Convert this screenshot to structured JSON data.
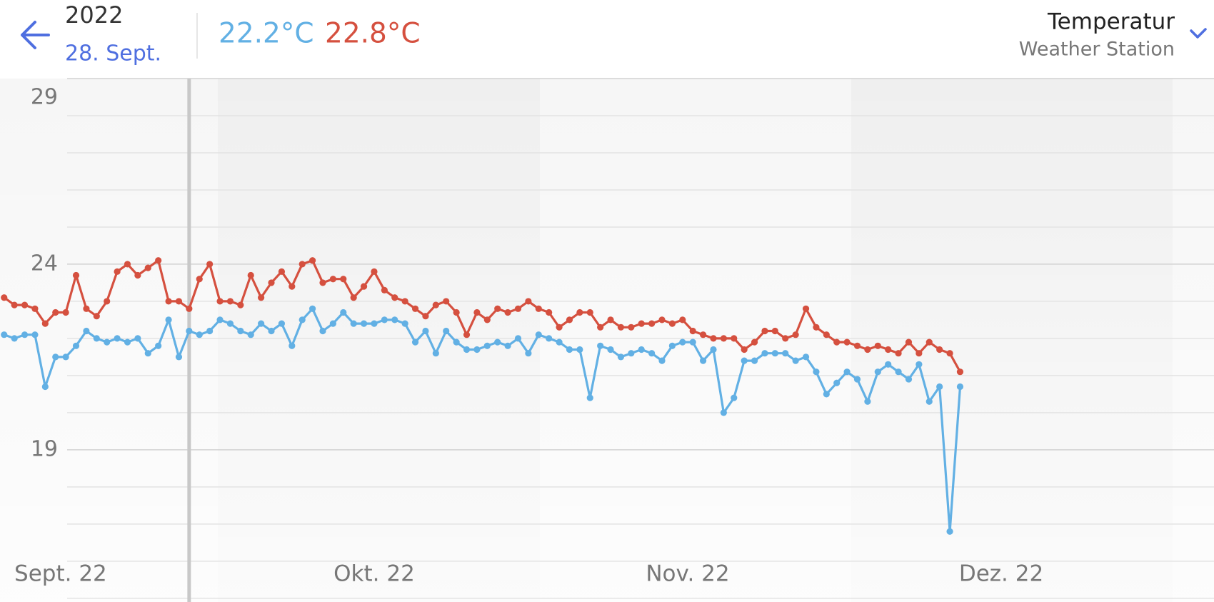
{
  "header": {
    "year": "2022",
    "date": "28. Sept.",
    "readouts": [
      "22.2°C",
      "22.8°C"
    ],
    "title": "Temperatur",
    "subtitle": "Weather Station"
  },
  "chart_data": {
    "type": "line",
    "x": [
      10,
      11,
      12,
      13,
      14,
      15,
      16,
      17,
      18,
      19,
      20,
      21,
      22,
      23,
      24,
      25,
      26,
      27,
      28,
      29,
      30,
      31,
      32,
      33,
      34,
      35,
      36,
      37,
      38,
      39,
      40,
      41,
      42,
      43,
      44,
      45,
      46,
      47,
      48,
      49,
      50,
      51,
      52,
      53,
      54,
      55,
      56,
      57,
      58,
      59,
      60,
      61,
      62,
      63,
      64,
      65,
      66,
      67,
      68,
      69,
      70,
      71,
      72,
      73,
      74,
      75,
      76,
      77,
      78,
      79,
      80,
      81,
      82,
      83,
      84,
      85,
      86,
      87,
      88,
      89,
      90,
      91,
      92,
      93,
      94,
      95,
      96,
      97,
      98,
      99,
      100,
      101,
      102,
      103
    ],
    "series": [
      {
        "color": "#62b0e4",
        "values": [
          22.1,
          22.0,
          22.1,
          22.1,
          20.7,
          21.5,
          21.5,
          21.8,
          22.2,
          22.0,
          21.9,
          22.0,
          21.9,
          22.0,
          21.6,
          21.8,
          22.5,
          21.5,
          22.2,
          22.1,
          22.2,
          22.5,
          22.4,
          22.2,
          22.1,
          22.4,
          22.2,
          22.4,
          21.8,
          22.5,
          22.8,
          22.2,
          22.4,
          22.7,
          22.4,
          22.4,
          22.4,
          22.5,
          22.5,
          22.4,
          21.9,
          22.2,
          21.6,
          22.2,
          21.9,
          21.7,
          21.7,
          21.8,
          21.9,
          21.8,
          22.0,
          21.6,
          22.1,
          22.0,
          21.9,
          21.7,
          21.7,
          20.4,
          21.8,
          21.7,
          21.5,
          21.6,
          21.7,
          21.6,
          21.4,
          21.8,
          21.9,
          21.9,
          21.4,
          21.7,
          20.0,
          20.4,
          21.4,
          21.4,
          21.6,
          21.6,
          21.6,
          21.4,
          21.5,
          21.1,
          20.5,
          20.8,
          21.1,
          20.9,
          20.3,
          21.1,
          21.3,
          21.1,
          20.9,
          21.3,
          20.3,
          20.7,
          16.8,
          20.7
        ]
      },
      {
        "color": "#d5503f",
        "values": [
          23.1,
          22.9,
          22.9,
          22.8,
          22.4,
          22.7,
          22.7,
          23.7,
          22.8,
          22.6,
          23.0,
          23.8,
          24.0,
          23.7,
          23.9,
          24.1,
          23.0,
          23.0,
          22.8,
          23.6,
          24.0,
          23.0,
          23.0,
          22.9,
          23.7,
          23.1,
          23.5,
          23.8,
          23.4,
          24.0,
          24.1,
          23.5,
          23.6,
          23.6,
          23.1,
          23.4,
          23.8,
          23.3,
          23.1,
          23.0,
          22.8,
          22.6,
          22.9,
          23.0,
          22.7,
          22.1,
          22.7,
          22.5,
          22.8,
          22.7,
          22.8,
          23.0,
          22.8,
          22.7,
          22.3,
          22.5,
          22.7,
          22.7,
          22.3,
          22.5,
          22.3,
          22.3,
          22.4,
          22.4,
          22.5,
          22.4,
          22.5,
          22.2,
          22.1,
          22.0,
          22.0,
          22.0,
          21.7,
          21.9,
          22.2,
          22.2,
          22.0,
          22.1,
          22.8,
          22.3,
          22.1,
          21.9,
          21.9,
          21.8,
          21.7,
          21.8,
          21.7,
          21.6,
          21.9,
          21.6,
          21.9,
          21.7,
          21.6,
          21.1
        ]
      }
    ],
    "xlim": [
      9.6,
      127.7
    ],
    "xticks": [
      {
        "value": 15.5,
        "label": "Sept. 22"
      },
      {
        "value": 46,
        "label": "Okt. 22"
      },
      {
        "value": 76.5,
        "label": "Nov. 22"
      },
      {
        "value": 107,
        "label": "Dez. 22"
      }
    ],
    "ylim": [
      14.9,
      29
    ],
    "yticks": [
      19,
      24,
      29
    ],
    "minor_yticks": [
      15,
      16,
      17,
      18,
      20,
      21,
      22,
      23,
      25,
      26,
      27,
      28
    ],
    "cursor_x": 28,
    "grid": true
  }
}
